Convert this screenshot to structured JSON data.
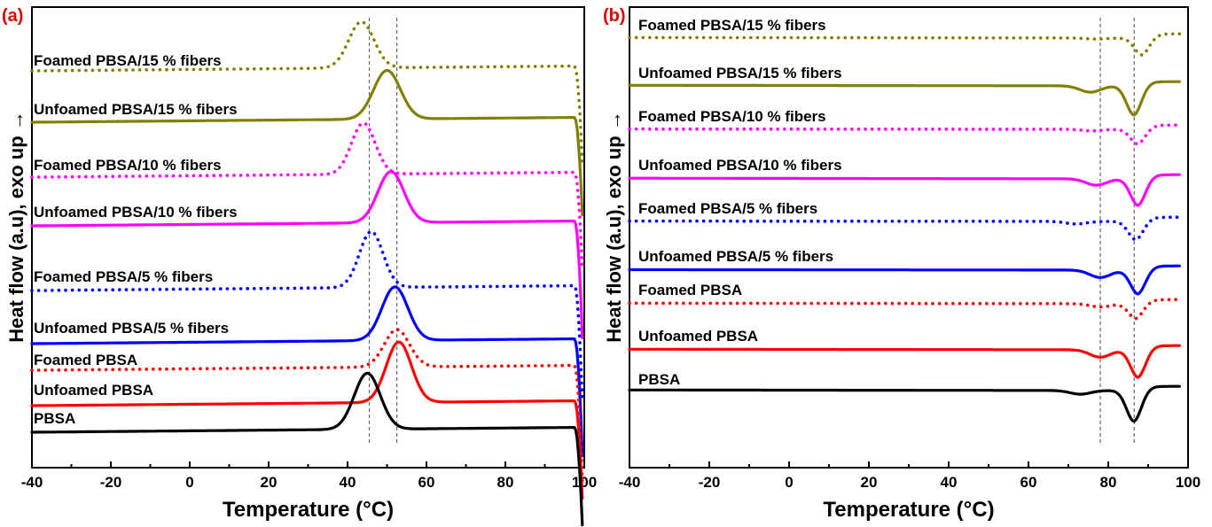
{
  "chart_data": [
    {
      "panel": "(a)",
      "type": "line",
      "xlabel": "Temperature (°C)",
      "ylabel": "Heat flow (a.u), exo up →",
      "xlim": [
        -40,
        100
      ],
      "xticks": [
        "-40",
        "-20",
        "0",
        "20",
        "40",
        "60",
        "80",
        "100"
      ],
      "reference_lines_x": [
        45.5,
        52.5
      ],
      "series": [
        {
          "name": "Foamed PBSA/15 % fibers",
          "color": "#808000",
          "style": "dotted",
          "baseline_left": 0.93,
          "baseline_right": 0.87,
          "peak_x": 43.5,
          "peak_height": 0.95,
          "peak_width": 3.2,
          "end_drop": 0.05
        },
        {
          "name": "Unfoamed PBSA/15 % fibers",
          "color": "#808000",
          "style": "solid",
          "baseline_left": 0.75,
          "baseline_right": 0.76,
          "peak_x": 50,
          "peak_height": 1.0,
          "peak_width": 3.4,
          "end_drop": 0.05
        },
        {
          "name": "Foamed PBSA/10 % fibers",
          "color": "#ff00ff",
          "style": "dotted",
          "baseline_left": 0.38,
          "baseline_right": 0.35,
          "peak_x": 44,
          "peak_height": 1.05,
          "peak_width": 3.0,
          "end_drop": 0.05
        },
        {
          "name": "Unfoamed PBSA/10 % fibers",
          "color": "#ff00ff",
          "style": "solid",
          "baseline_left": 0.2,
          "baseline_right": 0.22,
          "peak_x": 51,
          "peak_height": 1.05,
          "peak_width": 3.3,
          "end_drop": 0.06
        },
        {
          "name": "Foamed PBSA/5 % fibers",
          "color": "#0000ff",
          "style": "dotted",
          "baseline_left": -0.2,
          "baseline_right": -0.2,
          "peak_x": 46,
          "peak_height": 1.15,
          "peak_width": 3.0,
          "end_drop": 0.06
        },
        {
          "name": "Unfoamed PBSA/5 % fibers",
          "color": "#0000ff",
          "style": "solid",
          "baseline_left": -0.38,
          "baseline_right": -0.36,
          "peak_x": 52,
          "peak_height": 1.1,
          "peak_width": 3.3,
          "end_drop": 0.06
        },
        {
          "name": "Foamed PBSA",
          "color": "#ff0000",
          "style": "dotted",
          "baseline_left": -0.57,
          "baseline_right": -0.55,
          "peak_x": 52.5,
          "peak_height": 0.77,
          "peak_width": 3.2,
          "end_drop": 0.06
        },
        {
          "name": "Unfoamed PBSA",
          "color": "#ff0000",
          "style": "solid",
          "baseline_left": -0.76,
          "baseline_right": -0.72,
          "peak_x": 53,
          "peak_height": 1.24,
          "peak_width": 3.2,
          "end_drop": 0.05
        },
        {
          "name": "PBSA",
          "color": "#000000",
          "style": "solid",
          "baseline_left": -0.95,
          "baseline_right": -0.87,
          "peak_x": 45,
          "peak_height": 1.15,
          "peak_width": 3.3,
          "end_drop": 0.05
        }
      ]
    },
    {
      "panel": "(b)",
      "type": "line",
      "xlabel": "Temperature (°C)",
      "ylabel": "Heat flow (a.u), exo up →",
      "xlim": [
        -40,
        100
      ],
      "xticks": [
        "-40",
        "-20",
        "0",
        "20",
        "40",
        "60",
        "80",
        "100"
      ],
      "reference_lines_x": [
        78,
        86.5
      ],
      "series": [
        {
          "name": "Foamed PBSA/15 % fibers",
          "color": "#808000",
          "style": "dotted",
          "baseline_left": 1.42,
          "baseline_right": 1.33,
          "shoulder_x": 77,
          "shoulder_depth": 0.02,
          "peak_x": 88.5,
          "peak_depth": 0.32,
          "end_value": 1.43
        },
        {
          "name": "Unfoamed PBSA/15 % fibers",
          "color": "#808000",
          "style": "solid",
          "baseline_left": 1.1,
          "baseline_right": 1.0,
          "shoulder_x": 75.5,
          "shoulder_depth": 0.12,
          "peak_x": 86.5,
          "peak_depth": 0.55,
          "end_value": 1.03
        },
        {
          "name": "Foamed PBSA/10 % fibers",
          "color": "#ff00ff",
          "style": "dotted",
          "baseline_left": 0.78,
          "baseline_right": 0.73,
          "shoulder_x": 76,
          "shoulder_depth": 0.03,
          "peak_x": 87.5,
          "peak_depth": 0.28,
          "end_value": 0.74
        },
        {
          "name": "Unfoamed PBSA/10 % fibers",
          "color": "#ff00ff",
          "style": "solid",
          "baseline_left": 0.46,
          "baseline_right": 0.35,
          "shoulder_x": 77,
          "shoulder_depth": 0.12,
          "peak_x": 87.5,
          "peak_depth": 0.5,
          "end_value": 0.36
        },
        {
          "name": "Foamed PBSA/5 % fibers",
          "color": "#0000ff",
          "style": "dotted",
          "baseline_left": 0.06,
          "baseline_right": 0.0,
          "shoulder_x": 72,
          "shoulder_depth": 0.05,
          "peak_x": 87,
          "peak_depth": 0.35,
          "end_value": 0.02
        },
        {
          "name": "Unfoamed PBSA/5 % fibers",
          "color": "#0000ff",
          "style": "solid",
          "baseline_left": -0.2,
          "baseline_right": -0.27,
          "shoulder_x": 78,
          "shoulder_depth": 0.14,
          "peak_x": 87.5,
          "peak_depth": 0.45,
          "end_value": -0.27
        },
        {
          "name": "Foamed PBSA",
          "color": "#ff0000",
          "style": "dotted",
          "baseline_left": -0.4,
          "baseline_right": -0.5,
          "shoulder_x": 78,
          "shoulder_depth": 0.06,
          "peak_x": 87,
          "peak_depth": 0.28,
          "end_value": -0.45
        },
        {
          "name": "Unfoamed PBSA",
          "color": "#ff0000",
          "style": "solid",
          "baseline_left": -0.68,
          "baseline_right": -0.78,
          "shoulder_x": 78,
          "shoulder_depth": 0.14,
          "peak_x": 87.5,
          "peak_depth": 0.52,
          "end_value": -0.77
        },
        {
          "name": "PBSA",
          "color": "#000000",
          "style": "solid",
          "baseline_left": -1.0,
          "baseline_right": -1.1,
          "shoulder_x": 73,
          "shoulder_depth": 0.07,
          "peak_x": 86.5,
          "peak_depth": 0.58,
          "end_value": -1.05
        }
      ]
    }
  ]
}
